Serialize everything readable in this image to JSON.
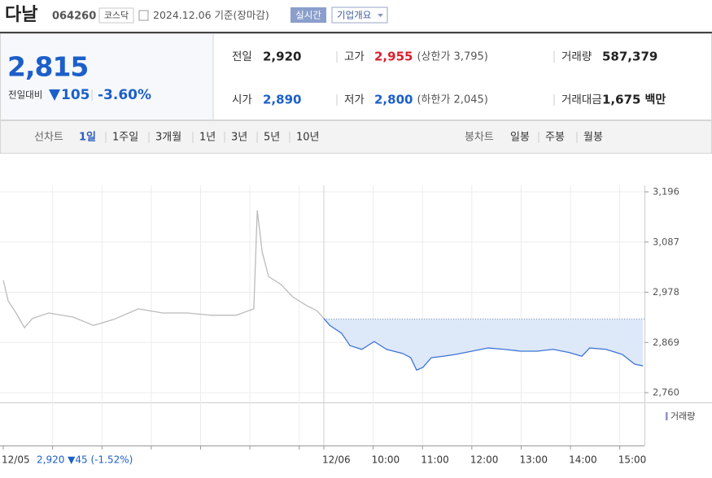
{
  "header": {
    "name": "다날",
    "code": "064260",
    "market": "코스닥",
    "date": "2024.12.06 기준(장마감)",
    "realtime": "실시간",
    "company": "기업개요"
  },
  "quote": {
    "price": "2,815",
    "change_label": "전일대비",
    "change": "105",
    "rate": "-3.60%"
  },
  "stats": [
    {
      "label": "전일",
      "value": "2,920"
    },
    {
      "label": "고가",
      "value": "2,955",
      "note": "(상한가 3,795)"
    },
    {
      "label": "거래량",
      "value": "587,379"
    },
    {
      "label": "시가",
      "value": "2,890"
    },
    {
      "label": "저가",
      "value": "2,800",
      "note": "(하한가 2,045)"
    },
    {
      "label": "거래대금",
      "value": "1,675",
      "note": "백만"
    }
  ],
  "tabs": {
    "line_label": "선차트",
    "periods": [
      "1일",
      "1주일",
      "3개월",
      "1년",
      "3년",
      "5년",
      "10년"
    ],
    "candle_label": "봉차트",
    "candles": [
      "일봉",
      "주봉",
      "월봉"
    ]
  },
  "chart_data": {
    "type": "line",
    "xlim": [
      0,
      13
    ],
    "ylim": [
      2760,
      3196
    ],
    "yticks": [
      {
        "value": 3196,
        "label": "3,196"
      },
      {
        "value": 3087,
        "label": "3,087"
      },
      {
        "value": 2978,
        "label": "2,978"
      },
      {
        "value": 2869,
        "label": "2,869"
      },
      {
        "value": 2760,
        "label": "2,760"
      }
    ],
    "xticks": [
      {
        "value": 0,
        "label": "12/05"
      },
      {
        "value": 1,
        "label": null
      },
      {
        "value": 2,
        "label": null
      },
      {
        "value": 3,
        "label": null
      },
      {
        "value": 4,
        "label": null
      },
      {
        "value": 5,
        "label": null
      },
      {
        "value": 6,
        "label": null
      },
      {
        "value": 6.5,
        "label": "12/06"
      },
      {
        "value": 7.5,
        "label": "10:00"
      },
      {
        "value": 8.5,
        "label": "11:00"
      },
      {
        "value": 9.5,
        "label": "12:00"
      },
      {
        "value": 10.5,
        "label": "13:00"
      },
      {
        "value": 11.5,
        "label": "14:00"
      },
      {
        "value": 12.5,
        "label": "15:00"
      }
    ],
    "baseline": 2920,
    "area_color": "#dde8f8",
    "series": [
      {
        "color": "#bbbbbb",
        "x": [
          0,
          0.1,
          0.26,
          0.43,
          0.59,
          0.92,
          1.42,
          1.83,
          2.24,
          2.74,
          3.23,
          3.73,
          4.22,
          4.72,
          5.08,
          5.15,
          5.25,
          5.38,
          5.63,
          5.87,
          6.12,
          6.37,
          6.5
        ],
        "values": [
          3004,
          2959,
          2933,
          2901,
          2921,
          2933,
          2924,
          2906,
          2919,
          2942,
          2933,
          2933,
          2928,
          2928,
          2942,
          3156,
          3065,
          3012,
          2995,
          2968,
          2951,
          2937,
          2921
        ]
      },
      {
        "color": "#3d74d6",
        "x": [
          6.5,
          6.62,
          6.86,
          7.03,
          7.27,
          7.52,
          7.77,
          8.1,
          8.26,
          8.38,
          8.51,
          8.68,
          8.92,
          9.17,
          9.5,
          9.83,
          10.16,
          10.49,
          10.82,
          11.15,
          11.48,
          11.73,
          11.89,
          12.22,
          12.55,
          12.8,
          12.97
        ],
        "values": [
          2921,
          2906,
          2889,
          2862,
          2854,
          2871,
          2854,
          2845,
          2836,
          2809,
          2815,
          2836,
          2839,
          2843,
          2850,
          2857,
          2854,
          2850,
          2850,
          2854,
          2847,
          2839,
          2857,
          2854,
          2843,
          2822,
          2818
        ]
      }
    ],
    "volume_legend": "거래량",
    "prev_info": "2,920 ▼45 (-1.52%)"
  }
}
